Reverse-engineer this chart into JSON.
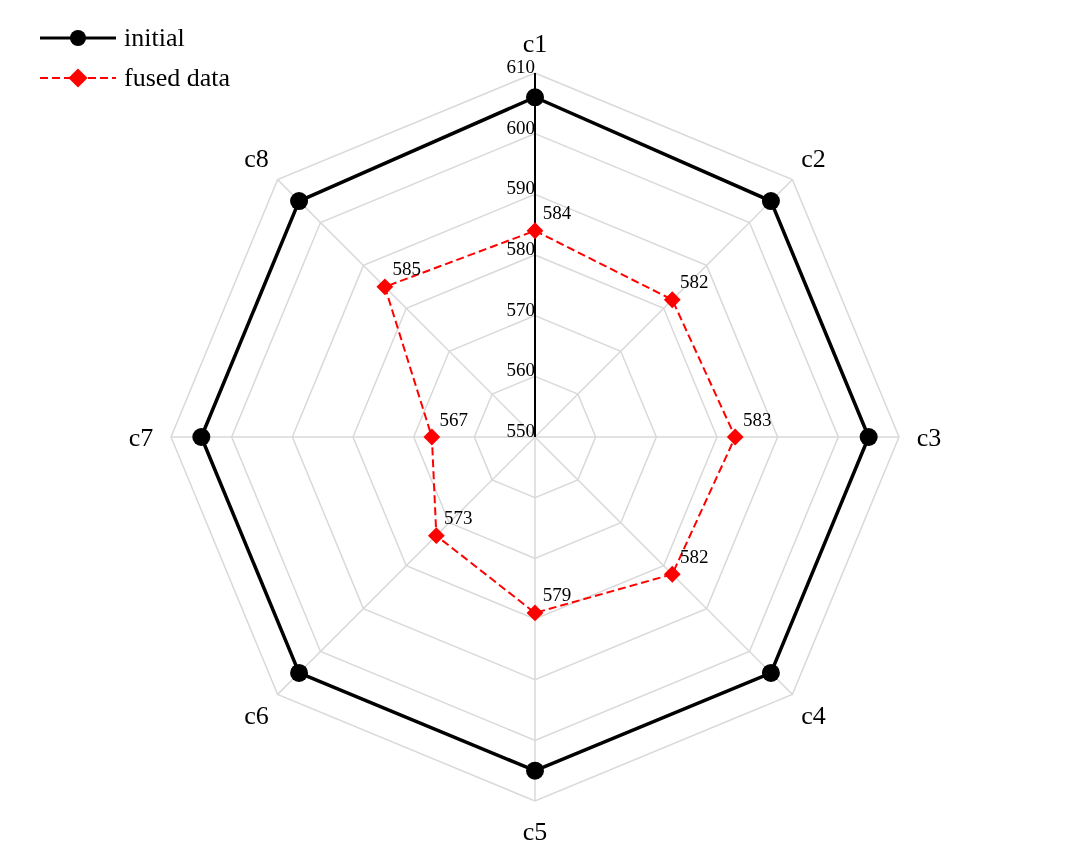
{
  "chart_data": {
    "type": "radar",
    "categories": [
      "c1",
      "c2",
      "c3",
      "c4",
      "c5",
      "c6",
      "c7",
      "c8"
    ],
    "series": [
      {
        "name": "initial",
        "color": "#000000",
        "values": [
          606,
          605,
          605,
          605,
          605,
          605,
          605,
          605
        ],
        "marker": "circle",
        "line_style": "solid"
      },
      {
        "name": "fused data",
        "color": "#ff0000",
        "values": [
          584,
          582,
          583,
          582,
          579,
          573,
          567,
          585
        ],
        "marker": "diamond",
        "line_style": "dashed",
        "data_labels": true
      }
    ],
    "ylim": [
      550,
      610
    ],
    "yticks": [
      550,
      560,
      570,
      580,
      590,
      600,
      610
    ],
    "grid": true,
    "legend": "top left"
  }
}
